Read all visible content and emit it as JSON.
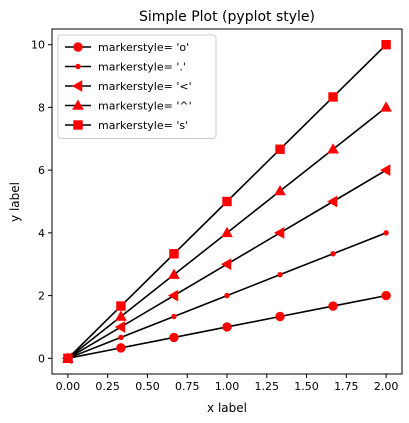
{
  "chart_data": {
    "type": "line",
    "title": "Simple Plot (pyplot style)",
    "xlabel": "x label",
    "ylabel": "y label",
    "xlim": [
      -0.1,
      2.1
    ],
    "ylim": [
      -0.5,
      10.5
    ],
    "xticks": [
      0.0,
      0.25,
      0.5,
      0.75,
      1.0,
      1.25,
      1.5,
      1.75,
      2.0
    ],
    "xtick_labels": [
      "0.00",
      "0.25",
      "0.50",
      "0.75",
      "1.00",
      "1.25",
      "1.50",
      "1.75",
      "2.00"
    ],
    "yticks": [
      0,
      2,
      4,
      6,
      8,
      10
    ],
    "ytick_labels": [
      "0",
      "2",
      "4",
      "6",
      "8",
      "10"
    ],
    "grid": false,
    "legend_placement": "top-left",
    "line_color": "#000000",
    "marker_color": "#ff0000",
    "x": [
      0.0,
      0.3333,
      0.6667,
      1.0,
      1.3333,
      1.6667,
      2.0
    ],
    "series": [
      {
        "name": "markerstyle= 'o'",
        "marker": "circle",
        "values": [
          0.0,
          0.3333,
          0.6667,
          1.0,
          1.3333,
          1.6667,
          2.0
        ]
      },
      {
        "name": "markerstyle= '.'",
        "marker": "point",
        "values": [
          0.0,
          0.6667,
          1.3333,
          2.0,
          2.6667,
          3.3333,
          4.0
        ]
      },
      {
        "name": "markerstyle= '<'",
        "marker": "triangle-left",
        "values": [
          0.0,
          1.0,
          2.0,
          3.0,
          4.0,
          5.0,
          6.0
        ]
      },
      {
        "name": "markerstyle= '^'",
        "marker": "triangle-up",
        "values": [
          0.0,
          1.3333,
          2.6667,
          4.0,
          5.3333,
          6.6667,
          8.0
        ]
      },
      {
        "name": "markerstyle= 's'",
        "marker": "square",
        "values": [
          0.0,
          1.6667,
          3.3333,
          5.0,
          6.6667,
          8.3333,
          10.0
        ]
      }
    ]
  }
}
